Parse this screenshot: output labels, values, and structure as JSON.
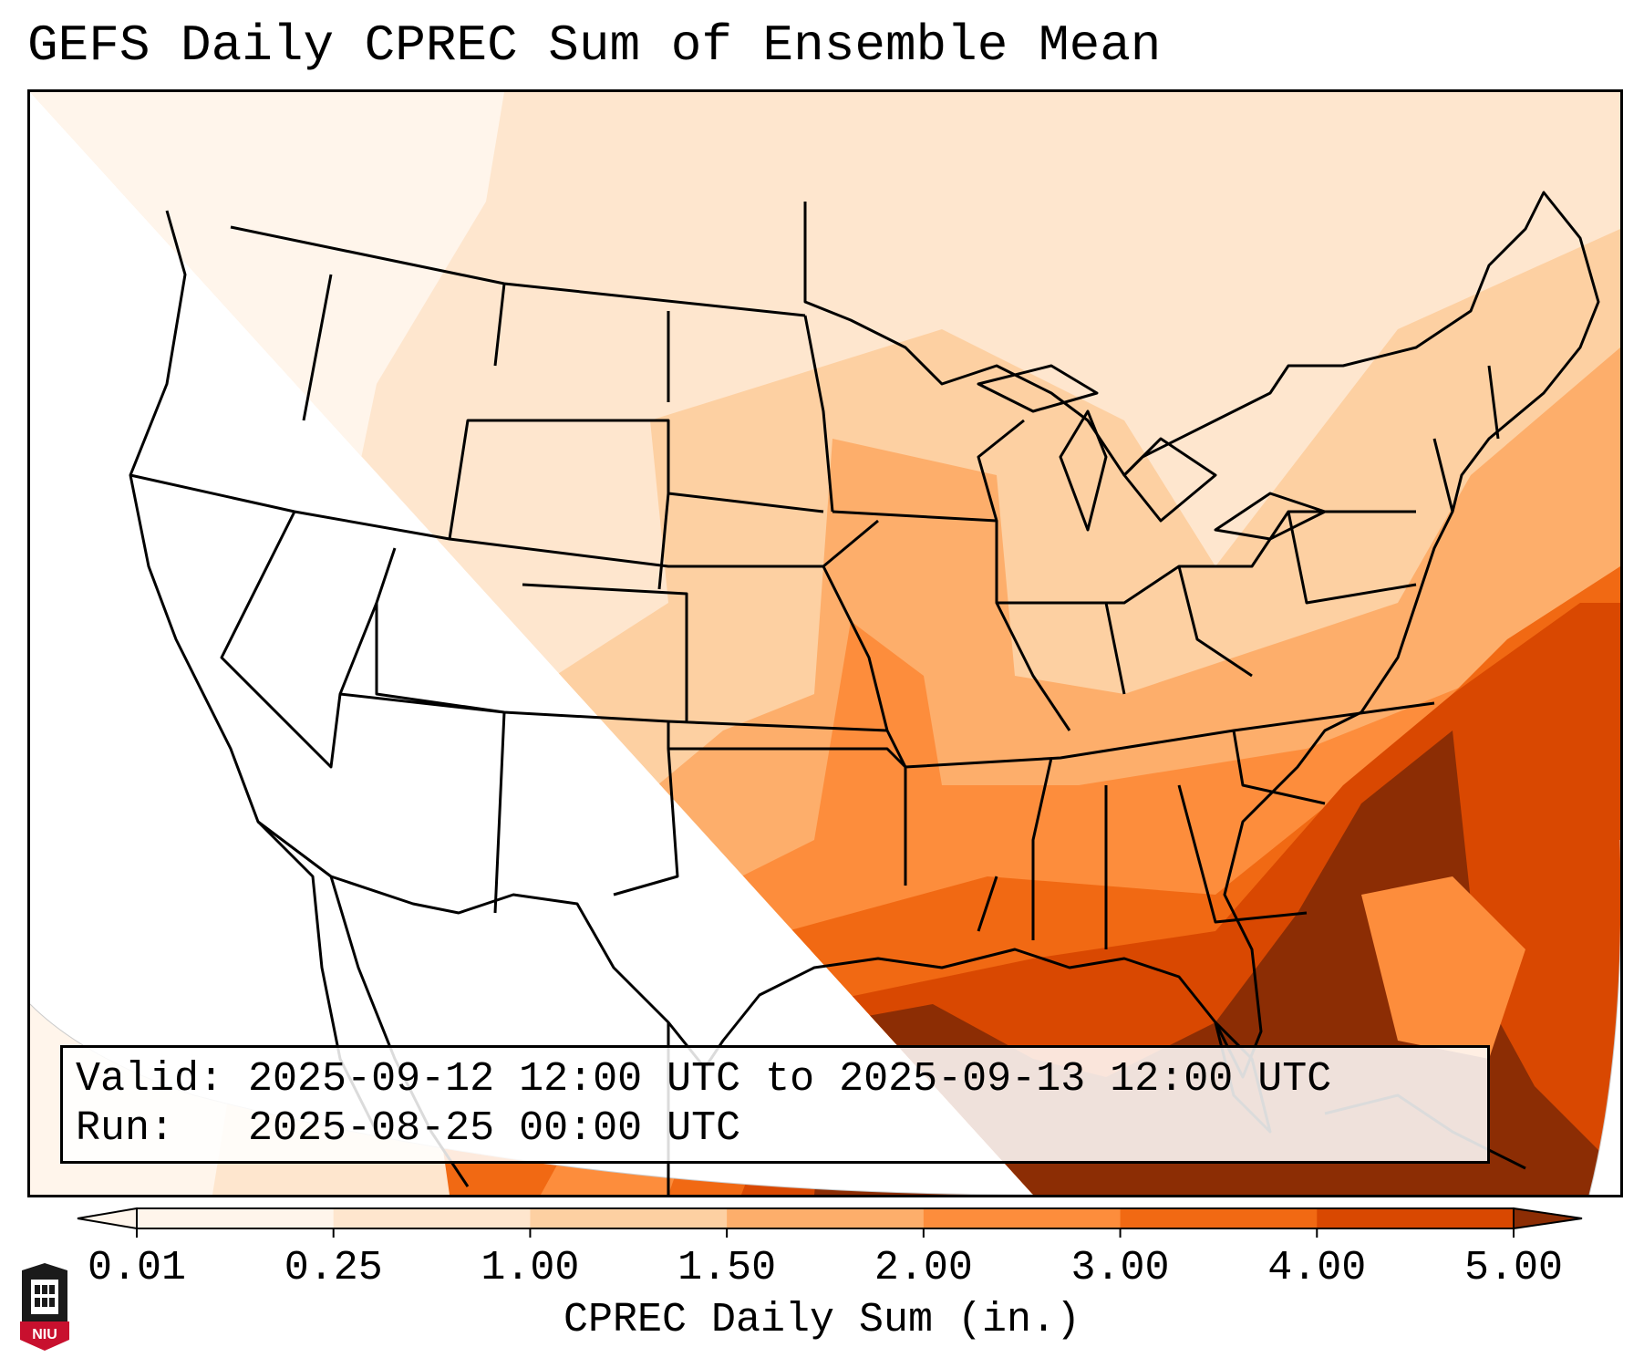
{
  "title": "GEFS Daily CPREC Sum of Ensemble Mean",
  "info": {
    "valid_label": "Valid:",
    "valid_value": "2025-09-12 12:00 UTC to 2025-09-13 12:00 UTC",
    "run_label": "Run:",
    "run_value": "2025-08-25 00:00 UTC"
  },
  "colorbar": {
    "label": "CPREC Daily Sum (in.)",
    "ticks": [
      "0.01",
      "0.25",
      "1.00",
      "1.50",
      "2.00",
      "3.00",
      "4.00",
      "5.00"
    ],
    "colors": [
      "#fff5eb",
      "#fee6ce",
      "#fdd0a2",
      "#fdae6b",
      "#fd8d3c",
      "#f16913",
      "#d94801",
      "#8c2d04"
    ],
    "extend_low_color": "#fff5eb",
    "extend_high_color": "#8c2d04"
  },
  "logo": {
    "text": "NIU",
    "color": "#c8102e"
  }
}
